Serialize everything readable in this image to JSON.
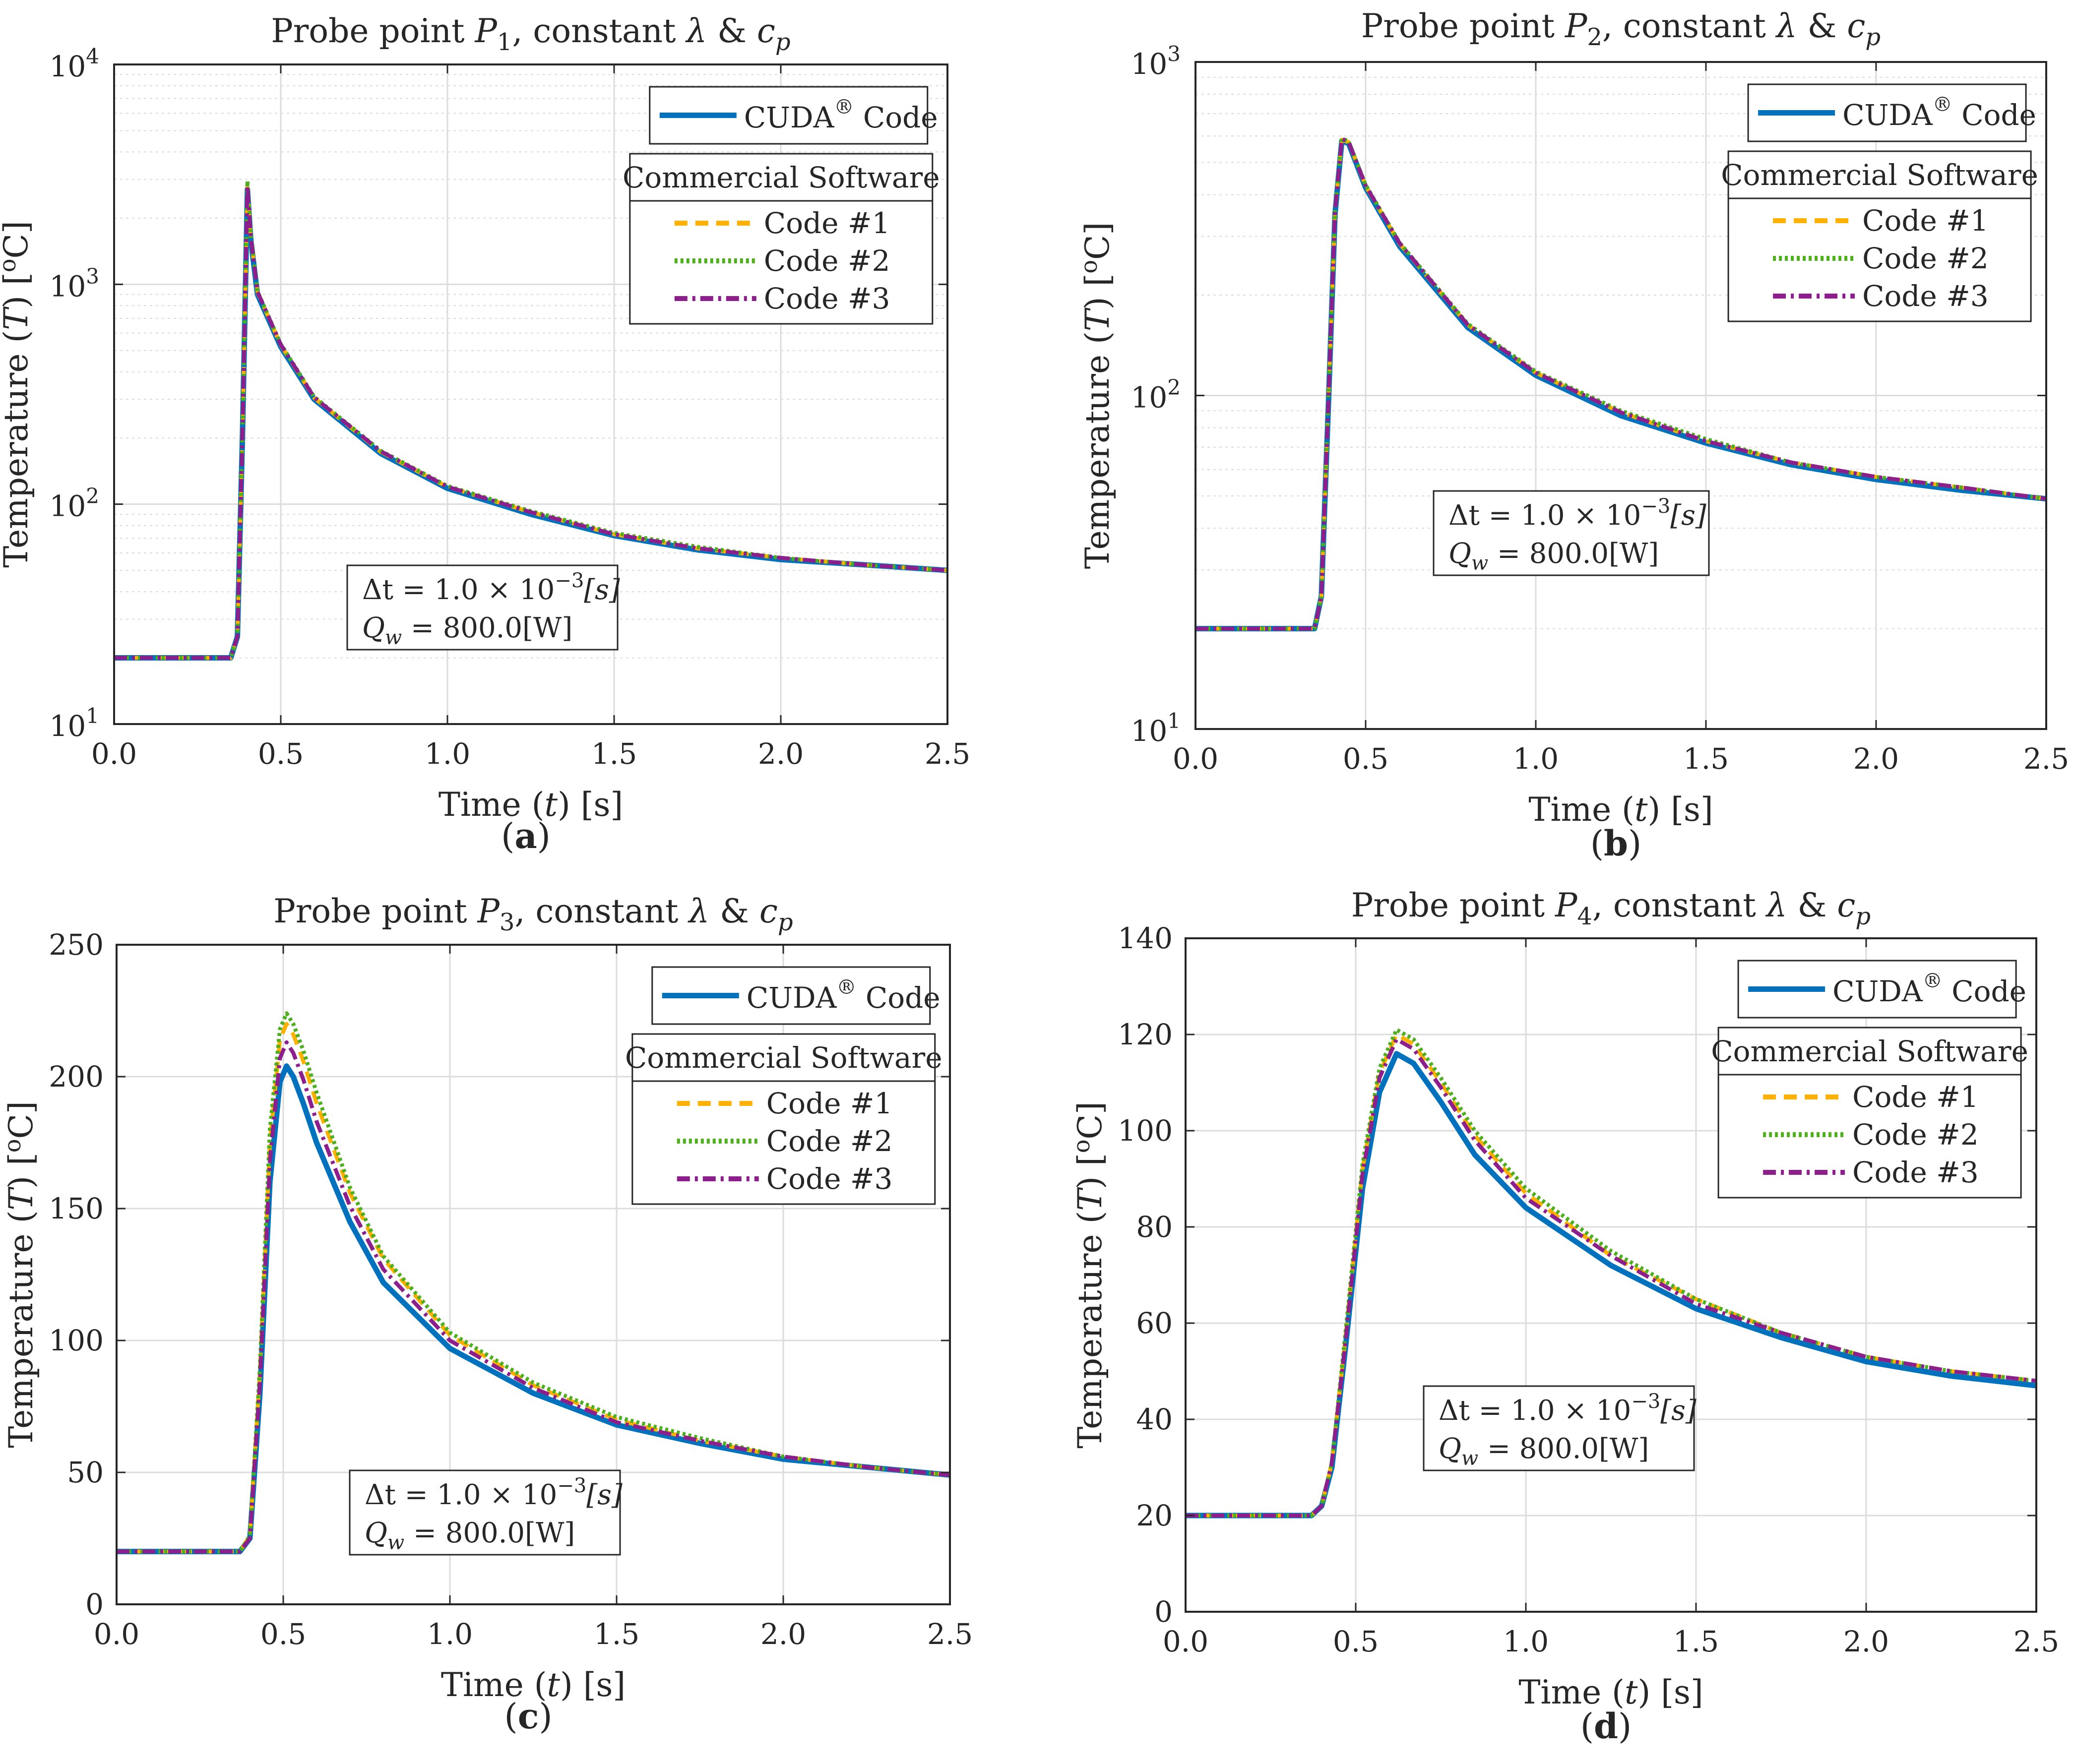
{
  "colors": {
    "cuda": "#0072BD",
    "code1": "#FFB000",
    "code2": "#4DAE1E",
    "code3": "#8C1F8C",
    "grid": "#DCDCDC",
    "axes": "#262626"
  },
  "chart_data": [
    {
      "type": "line",
      "panel_label": "(a)",
      "title_prefix": "Probe point ",
      "probe_symbol": "P",
      "probe_index": "1",
      "title_suffix_a": ", constant ",
      "lambda_symbol": "λ",
      "amp": " & ",
      "cp_symbol": "c",
      "cp_sub": "p",
      "xlabel_a": "Time (",
      "xlabel_var": "t",
      "xlabel_b": ") [s]",
      "ylabel_a": "Temperature (",
      "ylabel_var": "T",
      "ylabel_b": ") [",
      "ylabel_sup": "o",
      "ylabel_c": "C]",
      "yscale": "log",
      "xlim": [
        0,
        2.5
      ],
      "ylim": [
        10,
        10000
      ],
      "xticks": [
        0,
        0.5,
        1,
        1.5,
        2,
        2.5
      ],
      "xtick_labels": [
        "0.0",
        "0.5",
        "1.0",
        "1.5",
        "2.0",
        "2.5"
      ],
      "yticks": [
        10,
        100,
        1000,
        10000
      ],
      "ytick_base": "10",
      "ytick_exponents": [
        "1",
        "2",
        "3",
        "4"
      ],
      "legend": {
        "cuda_label": "CUDA",
        "cuda_reg": "®",
        "cuda_suffix": " Code",
        "group_title": "Commercial Software",
        "entries": [
          "Code #1",
          "Code #2",
          "Code #3"
        ]
      },
      "annotation": {
        "dt_line": "Δt = 1.0 × 10",
        "dt_exp": "−3",
        "dt_unit": "[s]",
        "q_symbol": "Q",
        "q_sub": "w",
        "q_value": " = 800.0[W]"
      },
      "series": [
        {
          "name": "CUDA® Code",
          "x": [
            0,
            0.35,
            0.37,
            0.385,
            0.4,
            0.41,
            0.43,
            0.5,
            0.6,
            0.8,
            1.0,
            1.25,
            1.5,
            1.75,
            2.0,
            2.25,
            2.5
          ],
          "y": [
            20,
            20,
            25,
            200,
            2700,
            1600,
            900,
            520,
            300,
            170,
            118,
            90,
            72,
            62,
            56,
            53,
            50
          ]
        },
        {
          "name": "Code #1",
          "x": [
            0,
            0.35,
            0.37,
            0.385,
            0.4,
            0.41,
            0.43,
            0.5,
            0.6,
            0.8,
            1.0,
            1.25,
            1.5,
            1.75,
            2.0,
            2.25,
            2.5
          ],
          "y": [
            20,
            20,
            25,
            200,
            2750,
            1650,
            920,
            530,
            305,
            173,
            120,
            92,
            73,
            63,
            57,
            53,
            50
          ]
        },
        {
          "name": "Code #2",
          "x": [
            0,
            0.35,
            0.37,
            0.385,
            0.4,
            0.41,
            0.43,
            0.5,
            0.6,
            0.8,
            1.0,
            1.25,
            1.5,
            1.75,
            2.0,
            2.25,
            2.5
          ],
          "y": [
            20,
            20,
            25,
            210,
            2950,
            1700,
            930,
            535,
            308,
            175,
            121,
            93,
            74,
            64,
            57,
            53,
            50
          ]
        },
        {
          "name": "Code #3",
          "x": [
            0,
            0.35,
            0.37,
            0.385,
            0.4,
            0.41,
            0.43,
            0.5,
            0.6,
            0.8,
            1.0,
            1.25,
            1.5,
            1.75,
            2.0,
            2.25,
            2.5
          ],
          "y": [
            20,
            20,
            25,
            205,
            2800,
            1650,
            925,
            532,
            306,
            174,
            120,
            92,
            73,
            63,
            57,
            53,
            50
          ]
        }
      ]
    },
    {
      "type": "line",
      "panel_label": "(b)",
      "title_prefix": "Probe point ",
      "probe_symbol": "P",
      "probe_index": "2",
      "title_suffix_a": ", constant ",
      "lambda_symbol": "λ",
      "amp": " & ",
      "cp_symbol": "c",
      "cp_sub": "p",
      "xlabel_a": "Time (",
      "xlabel_var": "t",
      "xlabel_b": ") [s]",
      "ylabel_a": "Temperature (",
      "ylabel_var": "T",
      "ylabel_b": ") [",
      "ylabel_sup": "o",
      "ylabel_c": "C]",
      "yscale": "log",
      "xlim": [
        0,
        2.5
      ],
      "ylim": [
        10,
        1000
      ],
      "xticks": [
        0,
        0.5,
        1,
        1.5,
        2,
        2.5
      ],
      "xtick_labels": [
        "0.0",
        "0.5",
        "1.0",
        "1.5",
        "2.0",
        "2.5"
      ],
      "yticks": [
        10,
        100,
        1000
      ],
      "ytick_base": "10",
      "ytick_exponents": [
        "1",
        "2",
        "3"
      ],
      "legend": {
        "cuda_label": "CUDA",
        "cuda_reg": "®",
        "cuda_suffix": " Code",
        "group_title": "Commercial Software",
        "entries": [
          "Code #1",
          "Code #2",
          "Code #3"
        ]
      },
      "annotation": {
        "dt_line": "Δt = 1.0 × 10",
        "dt_exp": "−3",
        "dt_unit": "[s]",
        "q_symbol": "Q",
        "q_sub": "w",
        "q_value": " = 800.0[W]"
      },
      "series": [
        {
          "name": "CUDA® Code",
          "x": [
            0,
            0.35,
            0.37,
            0.39,
            0.41,
            0.43,
            0.45,
            0.5,
            0.6,
            0.8,
            1.0,
            1.25,
            1.5,
            1.75,
            2.0,
            2.25,
            2.5
          ],
          "y": [
            20,
            20,
            25,
            90,
            350,
            580,
            570,
            420,
            280,
            160,
            115,
            87,
            72,
            62,
            56,
            52,
            49
          ]
        },
        {
          "name": "Code #1",
          "x": [
            0,
            0.35,
            0.37,
            0.39,
            0.41,
            0.43,
            0.45,
            0.5,
            0.6,
            0.8,
            1.0,
            1.25,
            1.5,
            1.75,
            2.0,
            2.25,
            2.5
          ],
          "y": [
            20,
            20,
            25,
            92,
            355,
            585,
            575,
            425,
            285,
            163,
            117,
            89,
            73,
            63,
            57,
            53,
            49
          ]
        },
        {
          "name": "Code #2",
          "x": [
            0,
            0.35,
            0.37,
            0.39,
            0.41,
            0.43,
            0.45,
            0.5,
            0.6,
            0.8,
            1.0,
            1.25,
            1.5,
            1.75,
            2.0,
            2.25,
            2.5
          ],
          "y": [
            20,
            20,
            25,
            93,
            358,
            590,
            578,
            428,
            287,
            164,
            118,
            90,
            74,
            63,
            57,
            53,
            49
          ]
        },
        {
          "name": "Code #3",
          "x": [
            0,
            0.35,
            0.37,
            0.39,
            0.41,
            0.43,
            0.45,
            0.5,
            0.6,
            0.8,
            1.0,
            1.25,
            1.5,
            1.75,
            2.0,
            2.25,
            2.5
          ],
          "y": [
            20,
            20,
            25,
            92,
            356,
            588,
            576,
            426,
            286,
            163,
            117,
            89,
            73,
            63,
            57,
            53,
            49
          ]
        }
      ]
    },
    {
      "type": "line",
      "panel_label": "(c)",
      "title_prefix": "Probe point ",
      "probe_symbol": "P",
      "probe_index": "3",
      "title_suffix_a": ", constant ",
      "lambda_symbol": "λ",
      "amp": " & ",
      "cp_symbol": "c",
      "cp_sub": "p",
      "xlabel_a": "Time (",
      "xlabel_var": "t",
      "xlabel_b": ") [s]",
      "ylabel_a": "Temperature (",
      "ylabel_var": "T",
      "ylabel_b": ") [",
      "ylabel_sup": "o",
      "ylabel_c": "C]",
      "yscale": "linear",
      "xlim": [
        0,
        2.5
      ],
      "ylim": [
        0,
        250
      ],
      "xticks": [
        0,
        0.5,
        1,
        1.5,
        2,
        2.5
      ],
      "xtick_labels": [
        "0.0",
        "0.5",
        "1.0",
        "1.5",
        "2.0",
        "2.5"
      ],
      "yticks": [
        0,
        50,
        100,
        150,
        200,
        250
      ],
      "ytick_labels": [
        "0",
        "50",
        "100",
        "150",
        "200",
        "250"
      ],
      "legend": {
        "cuda_label": "CUDA",
        "cuda_reg": "®",
        "cuda_suffix": " Code",
        "group_title": "Commercial Software",
        "entries": [
          "Code #1",
          "Code #2",
          "Code #3"
        ]
      },
      "annotation": {
        "dt_line": "Δt = 1.0 × 10",
        "dt_exp": "−3",
        "dt_unit": "[s]",
        "q_symbol": "Q",
        "q_sub": "w",
        "q_value": " = 800.0[W]"
      },
      "series": [
        {
          "name": "CUDA® Code",
          "x": [
            0,
            0.37,
            0.4,
            0.43,
            0.46,
            0.49,
            0.51,
            0.53,
            0.56,
            0.6,
            0.7,
            0.8,
            1.0,
            1.25,
            1.5,
            1.75,
            2.0,
            2.25,
            2.5
          ],
          "y": [
            20,
            20,
            25,
            80,
            160,
            198,
            204,
            200,
            190,
            175,
            145,
            122,
            97,
            80,
            68,
            61,
            55,
            52,
            49
          ]
        },
        {
          "name": "Code #1",
          "x": [
            0,
            0.37,
            0.4,
            0.43,
            0.46,
            0.49,
            0.51,
            0.53,
            0.56,
            0.6,
            0.7,
            0.8,
            1.0,
            1.25,
            1.5,
            1.75,
            2.0,
            2.25,
            2.5
          ],
          "y": [
            20,
            20,
            26,
            88,
            175,
            214,
            220,
            216,
            206,
            190,
            156,
            131,
            102,
            83,
            70,
            62,
            56,
            52,
            49
          ]
        },
        {
          "name": "Code #2",
          "x": [
            0,
            0.37,
            0.4,
            0.43,
            0.46,
            0.49,
            0.51,
            0.53,
            0.56,
            0.6,
            0.7,
            0.8,
            1.0,
            1.25,
            1.5,
            1.75,
            2.0,
            2.25,
            2.5
          ],
          "y": [
            20,
            20,
            26,
            90,
            180,
            218,
            224,
            220,
            210,
            194,
            158,
            132,
            103,
            84,
            71,
            63,
            56,
            52,
            49
          ]
        },
        {
          "name": "Code #3",
          "x": [
            0,
            0.37,
            0.4,
            0.43,
            0.46,
            0.49,
            0.51,
            0.53,
            0.56,
            0.6,
            0.7,
            0.8,
            1.0,
            1.25,
            1.5,
            1.75,
            2.0,
            2.25,
            2.5
          ],
          "y": [
            20,
            20,
            25,
            84,
            168,
            207,
            213,
            209,
            199,
            183,
            151,
            127,
            100,
            82,
            69,
            62,
            56,
            52,
            49
          ]
        }
      ]
    },
    {
      "type": "line",
      "panel_label": "(d)",
      "title_prefix": "Probe point ",
      "probe_symbol": "P",
      "probe_index": "4",
      "title_suffix_a": ", constant ",
      "lambda_symbol": "λ",
      "amp": " & ",
      "cp_symbol": "c",
      "cp_sub": "p",
      "xlabel_a": "Time (",
      "xlabel_var": "t",
      "xlabel_b": ") [s]",
      "ylabel_a": "Temperature (",
      "ylabel_var": "T",
      "ylabel_b": ") [",
      "ylabel_sup": "o",
      "ylabel_c": "C]",
      "yscale": "linear",
      "xlim": [
        0,
        2.5
      ],
      "ylim": [
        0,
        140
      ],
      "xticks": [
        0,
        0.5,
        1,
        1.5,
        2,
        2.5
      ],
      "xtick_labels": [
        "0.0",
        "0.5",
        "1.0",
        "1.5",
        "2.0",
        "2.5"
      ],
      "yticks": [
        0,
        20,
        40,
        60,
        80,
        100,
        120,
        140
      ],
      "ytick_labels": [
        "0",
        "20",
        "40",
        "60",
        "80",
        "100",
        "120",
        "140"
      ],
      "legend": {
        "cuda_label": "CUDA",
        "cuda_reg": "®",
        "cuda_suffix": " Code",
        "group_title": "Commercial Software",
        "entries": [
          "Code #1",
          "Code #2",
          "Code #3"
        ]
      },
      "annotation": {
        "dt_line": "Δt = 1.0 × 10",
        "dt_exp": "−3",
        "dt_unit": "[s]",
        "q_symbol": "Q",
        "q_sub": "w",
        "q_value": " = 800.0[W]"
      },
      "series": [
        {
          "name": "CUDA® Code",
          "x": [
            0,
            0.37,
            0.4,
            0.43,
            0.47,
            0.52,
            0.57,
            0.62,
            0.67,
            0.75,
            0.85,
            1.0,
            1.25,
            1.5,
            1.75,
            2.0,
            2.25,
            2.5
          ],
          "y": [
            20,
            20,
            22,
            30,
            55,
            88,
            108,
            116,
            114,
            106,
            95,
            84,
            72,
            63,
            57,
            52,
            49,
            47
          ]
        },
        {
          "name": "Code #1",
          "x": [
            0,
            0.37,
            0.4,
            0.43,
            0.47,
            0.52,
            0.57,
            0.62,
            0.67,
            0.75,
            0.85,
            1.0,
            1.25,
            1.5,
            1.75,
            2.0,
            2.25,
            2.5
          ],
          "y": [
            20,
            20,
            22,
            31,
            57,
            92,
            112,
            120,
            118,
            110,
            99,
            87,
            74,
            65,
            58,
            53,
            50,
            48
          ]
        },
        {
          "name": "Code #2",
          "x": [
            0,
            0.37,
            0.4,
            0.43,
            0.47,
            0.52,
            0.57,
            0.62,
            0.67,
            0.75,
            0.85,
            1.0,
            1.25,
            1.5,
            1.75,
            2.0,
            2.25,
            2.5
          ],
          "y": [
            20,
            20,
            22,
            31,
            58,
            93,
            113,
            121,
            119,
            111,
            100,
            88,
            75,
            65,
            58,
            53,
            50,
            48
          ]
        },
        {
          "name": "Code #3",
          "x": [
            0,
            0.37,
            0.4,
            0.43,
            0.47,
            0.52,
            0.57,
            0.62,
            0.67,
            0.75,
            0.85,
            1.0,
            1.25,
            1.5,
            1.75,
            2.0,
            2.25,
            2.5
          ],
          "y": [
            20,
            20,
            22,
            31,
            56,
            91,
            111,
            119,
            117,
            109,
            98,
            86,
            74,
            64,
            58,
            53,
            50,
            48
          ]
        }
      ]
    }
  ]
}
